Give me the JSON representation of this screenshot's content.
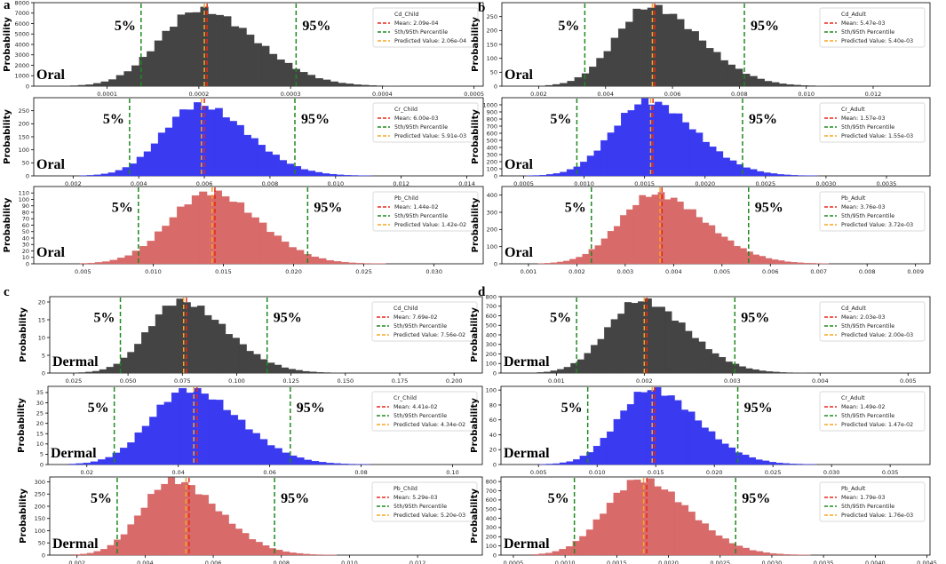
{
  "figure": {
    "pct_low_label": "5%",
    "pct_high_label": "95%",
    "ylabel": "Probability",
    "legend_percentile": "5th/95th Percentile"
  },
  "colors": {
    "dark": "#444444",
    "blue": "#3a3af0",
    "red": "#d86a6a",
    "mean": "#e8281c",
    "predicted": "#f5a623",
    "percentile": "#1e8a1e"
  },
  "chart_data": [
    {
      "type": "bar",
      "panel": "a",
      "route": "Oral",
      "color": "dark",
      "legend_name": "Cd_Child",
      "legend_mean": "Mean: 2.09e-04",
      "legend_pred": "Predicted Value: 2.06e-04",
      "xlim": [
        2e-05,
        0.00051
      ],
      "xticks": [
        0.0001,
        0.0002,
        0.0003,
        0.0004,
        0.0005
      ],
      "xtick_labels": [
        "0.0001",
        "0.0002",
        "0.0003",
        "0.0004",
        "0.0005"
      ],
      "ylim": [
        0,
        8000
      ],
      "yticks": [
        0,
        1000,
        2000,
        3000,
        4000,
        5000,
        6000,
        7000,
        8000
      ],
      "ytick_labels": [
        "0",
        "1000",
        "2000",
        "3000",
        "4000",
        "5000",
        "6000",
        "7000",
        "8000"
      ],
      "mean": 0.000209,
      "predicted": 0.000206,
      "p5": 0.000137,
      "p95": 0.000306,
      "bins": [
        6e-05,
        0.00046
      ],
      "peak": 7300,
      "mode": 0.0002,
      "sl": 4.3e-05,
      "sr": 6.2e-05,
      "nbins": 48
    },
    {
      "type": "bar",
      "panel": "a",
      "route": "Oral",
      "color": "blue",
      "legend_name": "Cr_Child",
      "legend_mean": "Mean: 6.00e-03",
      "legend_pred": "Predicted Value: 5.91e-03",
      "xlim": [
        0.0008,
        0.0145
      ],
      "xticks": [
        0.002,
        0.004,
        0.006,
        0.008,
        0.01,
        0.012,
        0.014
      ],
      "xtick_labels": [
        "0.002",
        "0.004",
        "0.006",
        "0.008",
        "0.010",
        "0.012",
        "0.014"
      ],
      "ylim": [
        0,
        300
      ],
      "yticks": [
        0,
        50,
        100,
        150,
        200,
        250
      ],
      "ytick_labels": [
        "0",
        "50",
        "100",
        "150",
        "200",
        "250"
      ],
      "mean": 0.006,
      "predicted": 0.00591,
      "p5": 0.00372,
      "p95": 0.00876,
      "bins": [
        0.0022,
        0.0122
      ],
      "peak": 272,
      "mode": 0.0058,
      "sl": 0.00106,
      "sr": 0.0015,
      "nbins": 46
    },
    {
      "type": "bar",
      "panel": "a",
      "route": "Oral",
      "color": "red",
      "legend_name": "Pb_Child",
      "legend_mean": "Mean: 1.44e-02",
      "legend_pred": "Predicted Value: 1.42e-02",
      "xlim": [
        0.0015,
        0.0335
      ],
      "xticks": [
        0.005,
        0.01,
        0.015,
        0.02,
        0.025,
        0.03
      ],
      "xtick_labels": [
        "0.005",
        "0.010",
        "0.015",
        "0.020",
        "0.025",
        "0.030"
      ],
      "ylim": [
        0,
        120
      ],
      "yticks": [
        0,
        10,
        20,
        30,
        40,
        50,
        60,
        70,
        80,
        90,
        100,
        110
      ],
      "ytick_labels": [
        "0",
        "10",
        "20",
        "30",
        "40",
        "50",
        "60",
        "70",
        "80",
        "90",
        "100",
        "110"
      ],
      "mean": 0.0144,
      "predicted": 0.0142,
      "p5": 0.00895,
      "p95": 0.021,
      "bins": [
        0.0048,
        0.0292
      ],
      "peak": 111,
      "mode": 0.014,
      "sl": 0.0028,
      "sr": 0.0035,
      "nbins": 46
    },
    {
      "type": "bar",
      "panel": "b",
      "route": "Oral",
      "color": "dark",
      "legend_name": "Cd_Adult",
      "legend_mean": "Mean: 5.47e-03",
      "legend_pred": "Predicted Value: 5.40e-03",
      "xlim": [
        0.0009,
        0.0137
      ],
      "xticks": [
        0.002,
        0.004,
        0.006,
        0.008,
        0.01,
        0.012
      ],
      "xtick_labels": [
        "0.002",
        "0.004",
        "0.006",
        "0.008",
        "0.010",
        "0.012"
      ],
      "ylim": [
        0,
        300
      ],
      "yticks": [
        0,
        50,
        100,
        150,
        200,
        250
      ],
      "ytick_labels": [
        "0",
        "50",
        "100",
        "150",
        "200",
        "250"
      ],
      "mean": 0.00547,
      "predicted": 0.0054,
      "p5": 0.00338,
      "p95": 0.00815,
      "bins": [
        0.0022,
        0.0118
      ],
      "peak": 285,
      "mode": 0.0053,
      "sl": 0.001,
      "sr": 0.00152,
      "nbins": 44
    },
    {
      "type": "bar",
      "panel": "b",
      "route": "Oral",
      "color": "blue",
      "legend_name": "Cr_Adult",
      "legend_mean": "Mean: 1.57e-03",
      "legend_pred": "Predicted Value: 1.55e-03",
      "xlim": [
        0.00032,
        0.00386
      ],
      "xticks": [
        0.0005,
        0.001,
        0.0015,
        0.002,
        0.0025,
        0.003,
        0.0035
      ],
      "xtick_labels": [
        "0.0005",
        "0.0010",
        "0.0015",
        "0.0020",
        "0.0025",
        "0.0030",
        "0.0035"
      ],
      "ylim": [
        0,
        1100
      ],
      "yticks": [
        0,
        100,
        200,
        300,
        400,
        500,
        600,
        700,
        800,
        900,
        1000
      ],
      "ytick_labels": [
        "0",
        "100",
        "200",
        "300",
        "400",
        "500",
        "600",
        "700",
        "800",
        "900",
        "1000"
      ],
      "mean": 0.00157,
      "predicted": 0.00155,
      "p5": 0.00094,
      "p95": 0.00231,
      "bins": [
        0.00052,
        0.0031
      ],
      "peak": 1050,
      "mode": 0.00152,
      "sl": 0.000285,
      "sr": 0.000395,
      "nbins": 46
    },
    {
      "type": "bar",
      "panel": "b",
      "route": "Oral",
      "color": "red",
      "legend_name": "Pb_Adult",
      "legend_mean": "Mean: 3.76e-03",
      "legend_pred": "Predicted Value: 3.72e-03",
      "xlim": [
        0.00045,
        0.0093
      ],
      "xticks": [
        0.001,
        0.002,
        0.003,
        0.004,
        0.005,
        0.006,
        0.007,
        0.008,
        0.009
      ],
      "xtick_labels": [
        "0.001",
        "0.002",
        "0.003",
        "0.004",
        "0.005",
        "0.006",
        "0.007",
        "0.008",
        "0.009"
      ],
      "ylim": [
        0,
        450
      ],
      "yticks": [
        0,
        100,
        200,
        300,
        400
      ],
      "ytick_labels": [
        "0",
        "100",
        "200",
        "300",
        "400"
      ],
      "mean": 0.00376,
      "predicted": 0.00372,
      "p5": 0.0023,
      "p95": 0.00555,
      "bins": [
        0.0012,
        0.0072
      ],
      "peak": 405,
      "mode": 0.0036,
      "sl": 0.00072,
      "sr": 0.00105,
      "nbins": 46
    },
    {
      "type": "bar",
      "panel": "c",
      "route": "Dermal",
      "color": "dark",
      "legend_name": "Cd_Child",
      "legend_mean": "Mean: 7.69e-02",
      "legend_pred": "Predicted Value: 7.56e-02",
      "xlim": [
        0.014,
        0.213
      ],
      "xticks": [
        0.025,
        0.05,
        0.075,
        0.1,
        0.125,
        0.15,
        0.175,
        0.2
      ],
      "xtick_labels": [
        "0.025",
        "0.050",
        "0.075",
        "0.100",
        "0.125",
        "0.150",
        "0.175",
        "0.200"
      ],
      "ylim": [
        0,
        21.5
      ],
      "yticks": [
        0,
        5,
        10,
        15,
        20
      ],
      "ytick_labels": [
        "0",
        "5",
        "10",
        "15",
        "20"
      ],
      "mean": 0.0769,
      "predicted": 0.0756,
      "p5": 0.0465,
      "p95": 0.114,
      "bins": [
        0.024,
        0.172
      ],
      "peak": 20.2,
      "mode": 0.0735,
      "sl": 0.0142,
      "sr": 0.0215,
      "nbins": 46
    },
    {
      "type": "bar",
      "panel": "c",
      "route": "Dermal",
      "color": "blue",
      "legend_name": "Cr_Child",
      "legend_mean": "Mean: 4.41e-02",
      "legend_pred": "Predicted Value: 4.34e-02",
      "xlim": [
        0.0115,
        0.1065
      ],
      "xticks": [
        0.02,
        0.04,
        0.06,
        0.08,
        0.1
      ],
      "xtick_labels": [
        "0.02",
        "0.04",
        "0.06",
        "0.08",
        "0.10"
      ],
      "ylim": [
        0,
        38
      ],
      "yticks": [
        0,
        5,
        10,
        15,
        20,
        25,
        30,
        35
      ],
      "ytick_labels": [
        "0",
        "5",
        "10",
        "15",
        "20",
        "25",
        "30",
        "35"
      ],
      "mean": 0.0441,
      "predicted": 0.0434,
      "p5": 0.026,
      "p95": 0.0645,
      "bins": [
        0.016,
        0.09
      ],
      "peak": 36.5,
      "mode": 0.042,
      "sl": 0.008,
      "sr": 0.0112,
      "nbins": 46
    },
    {
      "type": "bar",
      "panel": "c",
      "route": "Dermal",
      "color": "red",
      "legend_name": "Pb_Child",
      "legend_mean": "Mean: 5.29e-03",
      "legend_pred": "Predicted Value: 5.20e-03",
      "xlim": [
        0.0012,
        0.0139
      ],
      "xticks": [
        0.002,
        0.004,
        0.006,
        0.008,
        0.01,
        0.012
      ],
      "xtick_labels": [
        "0.002",
        "0.004",
        "0.006",
        "0.008",
        "0.010",
        "0.012"
      ],
      "ylim": [
        0,
        320
      ],
      "yticks": [
        0,
        50,
        100,
        150,
        200,
        250,
        300
      ],
      "ytick_labels": [
        "0",
        "50",
        "100",
        "150",
        "200",
        "250",
        "300"
      ],
      "mean": 0.00529,
      "predicted": 0.0052,
      "p5": 0.00318,
      "p95": 0.0078,
      "bins": [
        0.0019,
        0.011
      ],
      "peak": 305,
      "mode": 0.0048,
      "sl": 0.0009,
      "sr": 0.00135,
      "nbins": 46
    },
    {
      "type": "bar",
      "panel": "d",
      "route": "Dermal",
      "color": "dark",
      "legend_name": "Cd_Adult",
      "legend_mean": "Mean: 2.03e-03",
      "legend_pred": "Predicted Value: 2.00e-03",
      "xlim": [
        0.00037,
        0.00525
      ],
      "xticks": [
        0.001,
        0.002,
        0.003,
        0.004,
        0.005
      ],
      "xtick_labels": [
        "0.001",
        "0.002",
        "0.003",
        "0.004",
        "0.005"
      ],
      "ylim": [
        0,
        800
      ],
      "yticks": [
        0,
        100,
        200,
        300,
        400,
        500,
        600,
        700,
        800
      ],
      "ytick_labels": [
        "0",
        "100",
        "200",
        "300",
        "400",
        "500",
        "600",
        "700",
        "800"
      ],
      "mean": 0.00203,
      "predicted": 0.002,
      "p5": 0.00123,
      "p95": 0.00303,
      "bins": [
        0.00078,
        0.0043
      ],
      "peak": 760,
      "mode": 0.00195,
      "sl": 0.00037,
      "sr": 0.00053,
      "nbins": 46
    },
    {
      "type": "bar",
      "panel": "d",
      "route": "Dermal",
      "color": "blue",
      "legend_name": "Cr_Adult",
      "legend_mean": "Mean: 1.49e-02",
      "legend_pred": "Predicted Value: 1.47e-02",
      "xlim": [
        0.0018,
        0.0384
      ],
      "xticks": [
        0.005,
        0.01,
        0.015,
        0.02,
        0.025,
        0.03,
        0.035
      ],
      "xtick_labels": [
        "0.005",
        "0.010",
        "0.015",
        "0.020",
        "0.025",
        "0.030",
        "0.035"
      ],
      "ylim": [
        0,
        105
      ],
      "yticks": [
        0,
        20,
        40,
        60,
        80,
        100
      ],
      "ytick_labels": [
        "0",
        "20",
        "40",
        "60",
        "80",
        "100"
      ],
      "mean": 0.0149,
      "predicted": 0.0147,
      "p5": 0.0092,
      "p95": 0.022,
      "bins": [
        0.0045,
        0.031
      ],
      "peak": 101,
      "mode": 0.0145,
      "sl": 0.0027,
      "sr": 0.004,
      "nbins": 46
    },
    {
      "type": "bar",
      "panel": "d",
      "route": "Dermal",
      "color": "red",
      "legend_name": "Pb_Adult",
      "legend_mean": "Mean: 1.79e-03",
      "legend_pred": "Predicted Value: 1.76e-03",
      "xlim": [
        0.00038,
        0.00453
      ],
      "xticks": [
        0.0005,
        0.001,
        0.0015,
        0.002,
        0.0025,
        0.003,
        0.0035,
        0.004,
        0.0045
      ],
      "xtick_labels": [
        "0.0005",
        "0.0010",
        "0.0015",
        "0.0020",
        "0.0025",
        "0.0030",
        "0.0035",
        "0.0040",
        "0.0045"
      ],
      "ylim": [
        0,
        850
      ],
      "yticks": [
        0,
        100,
        200,
        300,
        400,
        500,
        600,
        700,
        800
      ],
      "ytick_labels": [
        "0",
        "100",
        "200",
        "300",
        "400",
        "500",
        "600",
        "700",
        "800"
      ],
      "mean": 0.00179,
      "predicted": 0.00176,
      "p5": 0.00109,
      "p95": 0.00265,
      "bins": [
        0.00068,
        0.0037
      ],
      "peak": 820,
      "mode": 0.00172,
      "sl": 0.00033,
      "sr": 0.00047,
      "nbins": 46
    }
  ]
}
